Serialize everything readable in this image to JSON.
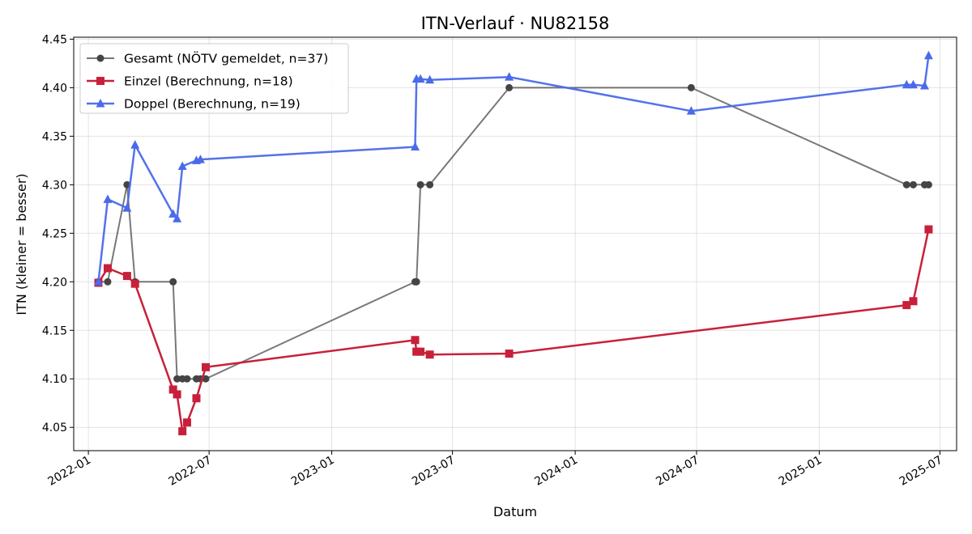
{
  "chart_data": {
    "type": "line",
    "title": "ITN-Verlauf · NU82158",
    "xlabel": "Datum",
    "ylabel": "ITN  (kleiner = besser)",
    "x_type": "date",
    "xlim": [
      "2021-12-10",
      "2025-07-26"
    ],
    "ylim": [
      4.026,
      4.452
    ],
    "x_ticks": [
      {
        "date": "2022-01-01",
        "label": "2022-01"
      },
      {
        "date": "2022-07-01",
        "label": "2022-07"
      },
      {
        "date": "2023-01-01",
        "label": "2023-01"
      },
      {
        "date": "2023-07-01",
        "label": "2023-07"
      },
      {
        "date": "2024-01-01",
        "label": "2024-01"
      },
      {
        "date": "2024-07-01",
        "label": "2024-07"
      },
      {
        "date": "2025-01-01",
        "label": "2025-01"
      },
      {
        "date": "2025-07-01",
        "label": "2025-07"
      }
    ],
    "y_ticks": [
      4.05,
      4.1,
      4.15,
      4.2,
      4.25,
      4.3,
      4.35,
      4.4,
      4.45
    ],
    "y_tick_labels": [
      "4.05",
      "4.10",
      "4.15",
      "4.20",
      "4.25",
      "4.30",
      "4.35",
      "4.40",
      "4.45"
    ],
    "grid": true,
    "legend_position": "top-left",
    "series": [
      {
        "name": "Gesamt (NÖTV gemeldet, n=37)",
        "color": "#444444",
        "line_opacity": 0.72,
        "marker": "circle",
        "points": [
          {
            "x": "2022-01-16",
            "y": 4.2
          },
          {
            "x": "2022-01-30",
            "y": 4.2
          },
          {
            "x": "2022-02-28",
            "y": 4.3
          },
          {
            "x": "2022-03-12",
            "y": 4.2
          },
          {
            "x": "2022-05-08",
            "y": 4.2
          },
          {
            "x": "2022-05-14",
            "y": 4.1
          },
          {
            "x": "2022-05-22",
            "y": 4.1
          },
          {
            "x": "2022-05-29",
            "y": 4.1
          },
          {
            "x": "2022-06-12",
            "y": 4.1
          },
          {
            "x": "2022-06-18",
            "y": 4.1
          },
          {
            "x": "2022-06-26",
            "y": 4.1
          },
          {
            "x": "2023-05-06",
            "y": 4.2
          },
          {
            "x": "2023-05-08",
            "y": 4.2
          },
          {
            "x": "2023-05-14",
            "y": 4.3
          },
          {
            "x": "2023-05-28",
            "y": 4.3
          },
          {
            "x": "2023-09-24",
            "y": 4.4
          },
          {
            "x": "2024-06-23",
            "y": 4.4
          },
          {
            "x": "2025-05-12",
            "y": 4.3
          },
          {
            "x": "2025-05-22",
            "y": 4.3
          },
          {
            "x": "2025-06-08",
            "y": 4.3
          },
          {
            "x": "2025-06-14",
            "y": 4.3
          }
        ]
      },
      {
        "name": "Einzel (Berechnung, n=18)",
        "color": "#C8203A",
        "line_opacity": 1,
        "marker": "square",
        "points": [
          {
            "x": "2022-01-16",
            "y": 4.199
          },
          {
            "x": "2022-01-30",
            "y": 4.214
          },
          {
            "x": "2022-02-28",
            "y": 4.206
          },
          {
            "x": "2022-03-12",
            "y": 4.198
          },
          {
            "x": "2022-05-08",
            "y": 4.089
          },
          {
            "x": "2022-05-14",
            "y": 4.084
          },
          {
            "x": "2022-05-22",
            "y": 4.046
          },
          {
            "x": "2022-05-29",
            "y": 4.055
          },
          {
            "x": "2022-06-12",
            "y": 4.08
          },
          {
            "x": "2022-06-26",
            "y": 4.112
          },
          {
            "x": "2023-05-06",
            "y": 4.14
          },
          {
            "x": "2023-05-08",
            "y": 4.128
          },
          {
            "x": "2023-05-14",
            "y": 4.128
          },
          {
            "x": "2023-05-28",
            "y": 4.125
          },
          {
            "x": "2023-09-24",
            "y": 4.126
          },
          {
            "x": "2025-05-12",
            "y": 4.176
          },
          {
            "x": "2025-05-22",
            "y": 4.18
          },
          {
            "x": "2025-06-14",
            "y": 4.254
          }
        ]
      },
      {
        "name": "Doppel (Berechnung, n=19)",
        "color": "#4A6AEA",
        "line_opacity": 0.95,
        "marker": "triangle",
        "points": [
          {
            "x": "2022-01-16",
            "y": 4.2
          },
          {
            "x": "2022-01-30",
            "y": 4.285
          },
          {
            "x": "2022-02-28",
            "y": 4.276
          },
          {
            "x": "2022-03-12",
            "y": 4.341
          },
          {
            "x": "2022-05-08",
            "y": 4.27
          },
          {
            "x": "2022-05-14",
            "y": 4.265
          },
          {
            "x": "2022-05-22",
            "y": 4.319
          },
          {
            "x": "2022-06-12",
            "y": 4.325
          },
          {
            "x": "2022-06-18",
            "y": 4.326
          },
          {
            "x": "2023-05-06",
            "y": 4.339
          },
          {
            "x": "2023-05-08",
            "y": 4.409
          },
          {
            "x": "2023-05-14",
            "y": 4.409
          },
          {
            "x": "2023-05-28",
            "y": 4.408
          },
          {
            "x": "2023-09-24",
            "y": 4.411
          },
          {
            "x": "2024-06-23",
            "y": 4.376
          },
          {
            "x": "2025-05-12",
            "y": 4.403
          },
          {
            "x": "2025-05-22",
            "y": 4.403
          },
          {
            "x": "2025-06-08",
            "y": 4.402
          },
          {
            "x": "2025-06-14",
            "y": 4.433
          }
        ]
      }
    ]
  }
}
